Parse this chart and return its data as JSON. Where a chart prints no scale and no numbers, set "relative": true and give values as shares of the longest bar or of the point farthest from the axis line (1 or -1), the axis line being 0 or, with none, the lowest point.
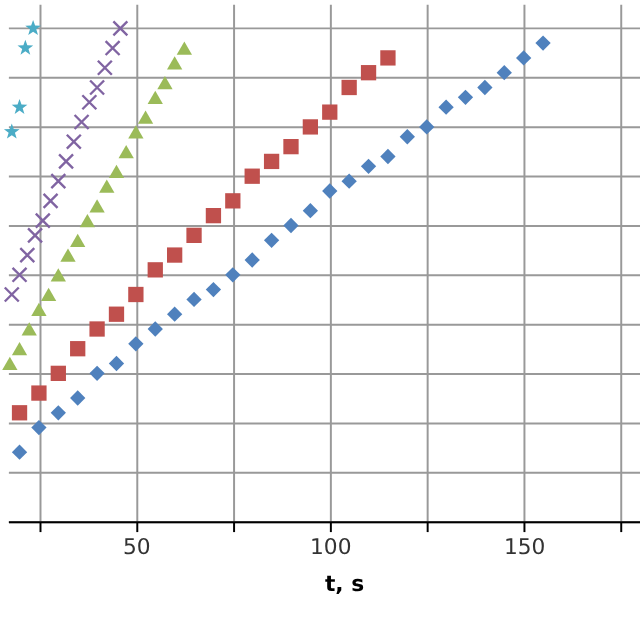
{
  "chart_data": {
    "type": "scatter",
    "xlabel": "t, s",
    "relative": true,
    "grid": true,
    "legend": false,
    "tick_labels": "x",
    "xlim": [
      17,
      180
    ],
    "xticks": [
      {
        "value": 25,
        "label": null
      },
      50,
      {
        "value": 75,
        "label": null
      },
      100,
      {
        "value": 125,
        "label": null
      },
      150,
      {
        "value": 175,
        "label": null
      }
    ],
    "series": [
      {
        "color": "#4f81bd",
        "marker": "diamond",
        "x": [
          20,
          25,
          30,
          35,
          40,
          45,
          50,
          55,
          60,
          65,
          70,
          75,
          80,
          85,
          90,
          95,
          100,
          105,
          110,
          115,
          120,
          125,
          130,
          135,
          140,
          145,
          150,
          155
        ],
        "values": [
          0.14,
          0.19,
          0.22,
          0.25,
          0.3,
          0.32,
          0.36,
          0.39,
          0.42,
          0.45,
          0.47,
          0.5,
          0.53,
          0.57,
          0.6,
          0.63,
          0.67,
          0.69,
          0.72,
          0.74,
          0.78,
          0.8,
          0.84,
          0.86,
          0.88,
          0.91,
          0.94,
          0.97
        ]
      },
      {
        "color": "#c0504d",
        "marker": "square",
        "x": [
          20,
          25,
          30,
          35,
          40,
          45,
          50,
          55,
          60,
          65,
          70,
          75,
          80,
          85,
          90,
          95,
          100,
          105,
          110,
          115
        ],
        "values": [
          0.22,
          0.26,
          0.3,
          0.35,
          0.39,
          0.42,
          0.46,
          0.51,
          0.54,
          0.58,
          0.62,
          0.65,
          0.7,
          0.73,
          0.76,
          0.8,
          0.83,
          0.88,
          0.91,
          0.94
        ]
      },
      {
        "color": "#9bbb59",
        "marker": "triangle",
        "x": [
          17.5,
          20,
          22.5,
          25,
          27.5,
          30,
          32.5,
          35,
          37.5,
          40,
          42.5,
          45,
          47.5,
          50,
          52.5,
          55,
          57.5,
          60,
          62.5
        ],
        "values": [
          0.32,
          0.35,
          0.39,
          0.43,
          0.46,
          0.5,
          0.54,
          0.57,
          0.61,
          0.64,
          0.68,
          0.71,
          0.75,
          0.79,
          0.82,
          0.86,
          0.89,
          0.93,
          0.96
        ]
      },
      {
        "color": "#8064a2",
        "marker": "cross",
        "x": [
          18,
          20,
          22,
          24,
          26,
          28,
          30,
          32,
          34,
          36,
          38,
          40,
          42,
          44,
          46
        ],
        "values": [
          0.46,
          0.5,
          0.54,
          0.58,
          0.61,
          0.65,
          0.69,
          0.73,
          0.77,
          0.81,
          0.85,
          0.88,
          0.92,
          0.96,
          1.0
        ]
      },
      {
        "color": "#4bacc6",
        "marker": "star",
        "x": [
          18,
          20,
          21.5,
          23.5
        ],
        "values": [
          0.79,
          0.84,
          0.96,
          1.0
        ]
      }
    ]
  }
}
